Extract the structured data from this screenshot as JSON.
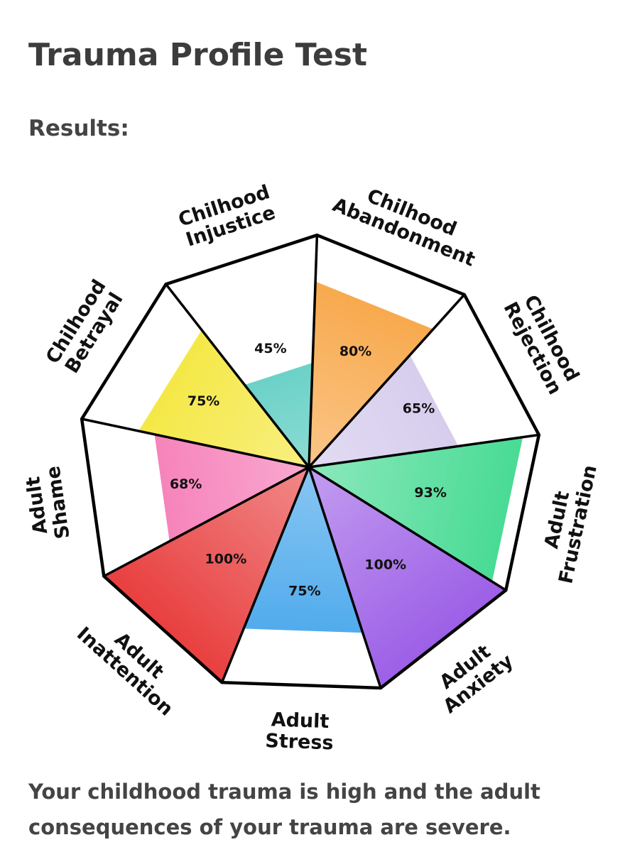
{
  "header": {
    "title": "Trauma Profile Test",
    "subtitle": "Results:"
  },
  "chart_data": {
    "type": "polar",
    "categories": [
      "Chilhood Abandonment",
      "Chilhood Rejection",
      "Adult Frustration",
      "Adult Anxiety",
      "Adult Stress",
      "Adult Inattention",
      "Adult Shame",
      "Chilhood Betrayal",
      "Chilhood Injustice"
    ],
    "values": [
      80,
      65,
      93,
      100,
      75,
      100,
      68,
      75,
      45
    ],
    "value_labels": [
      "80%",
      "65%",
      "93%",
      "100%",
      "75%",
      "100%",
      "68%",
      "75%",
      "45%"
    ],
    "colors": [
      "#f7a03a",
      "#cfc4ea",
      "#3fd98f",
      "#9a5be6",
      "#3aa0ea",
      "#e83a3a",
      "#f56fb0",
      "#f3e52e",
      "#3fc4b8"
    ],
    "rlim": [
      0,
      100
    ]
  },
  "footer": {
    "text": "Your childhood trauma is high and the adult consequences of your trauma are severe."
  }
}
